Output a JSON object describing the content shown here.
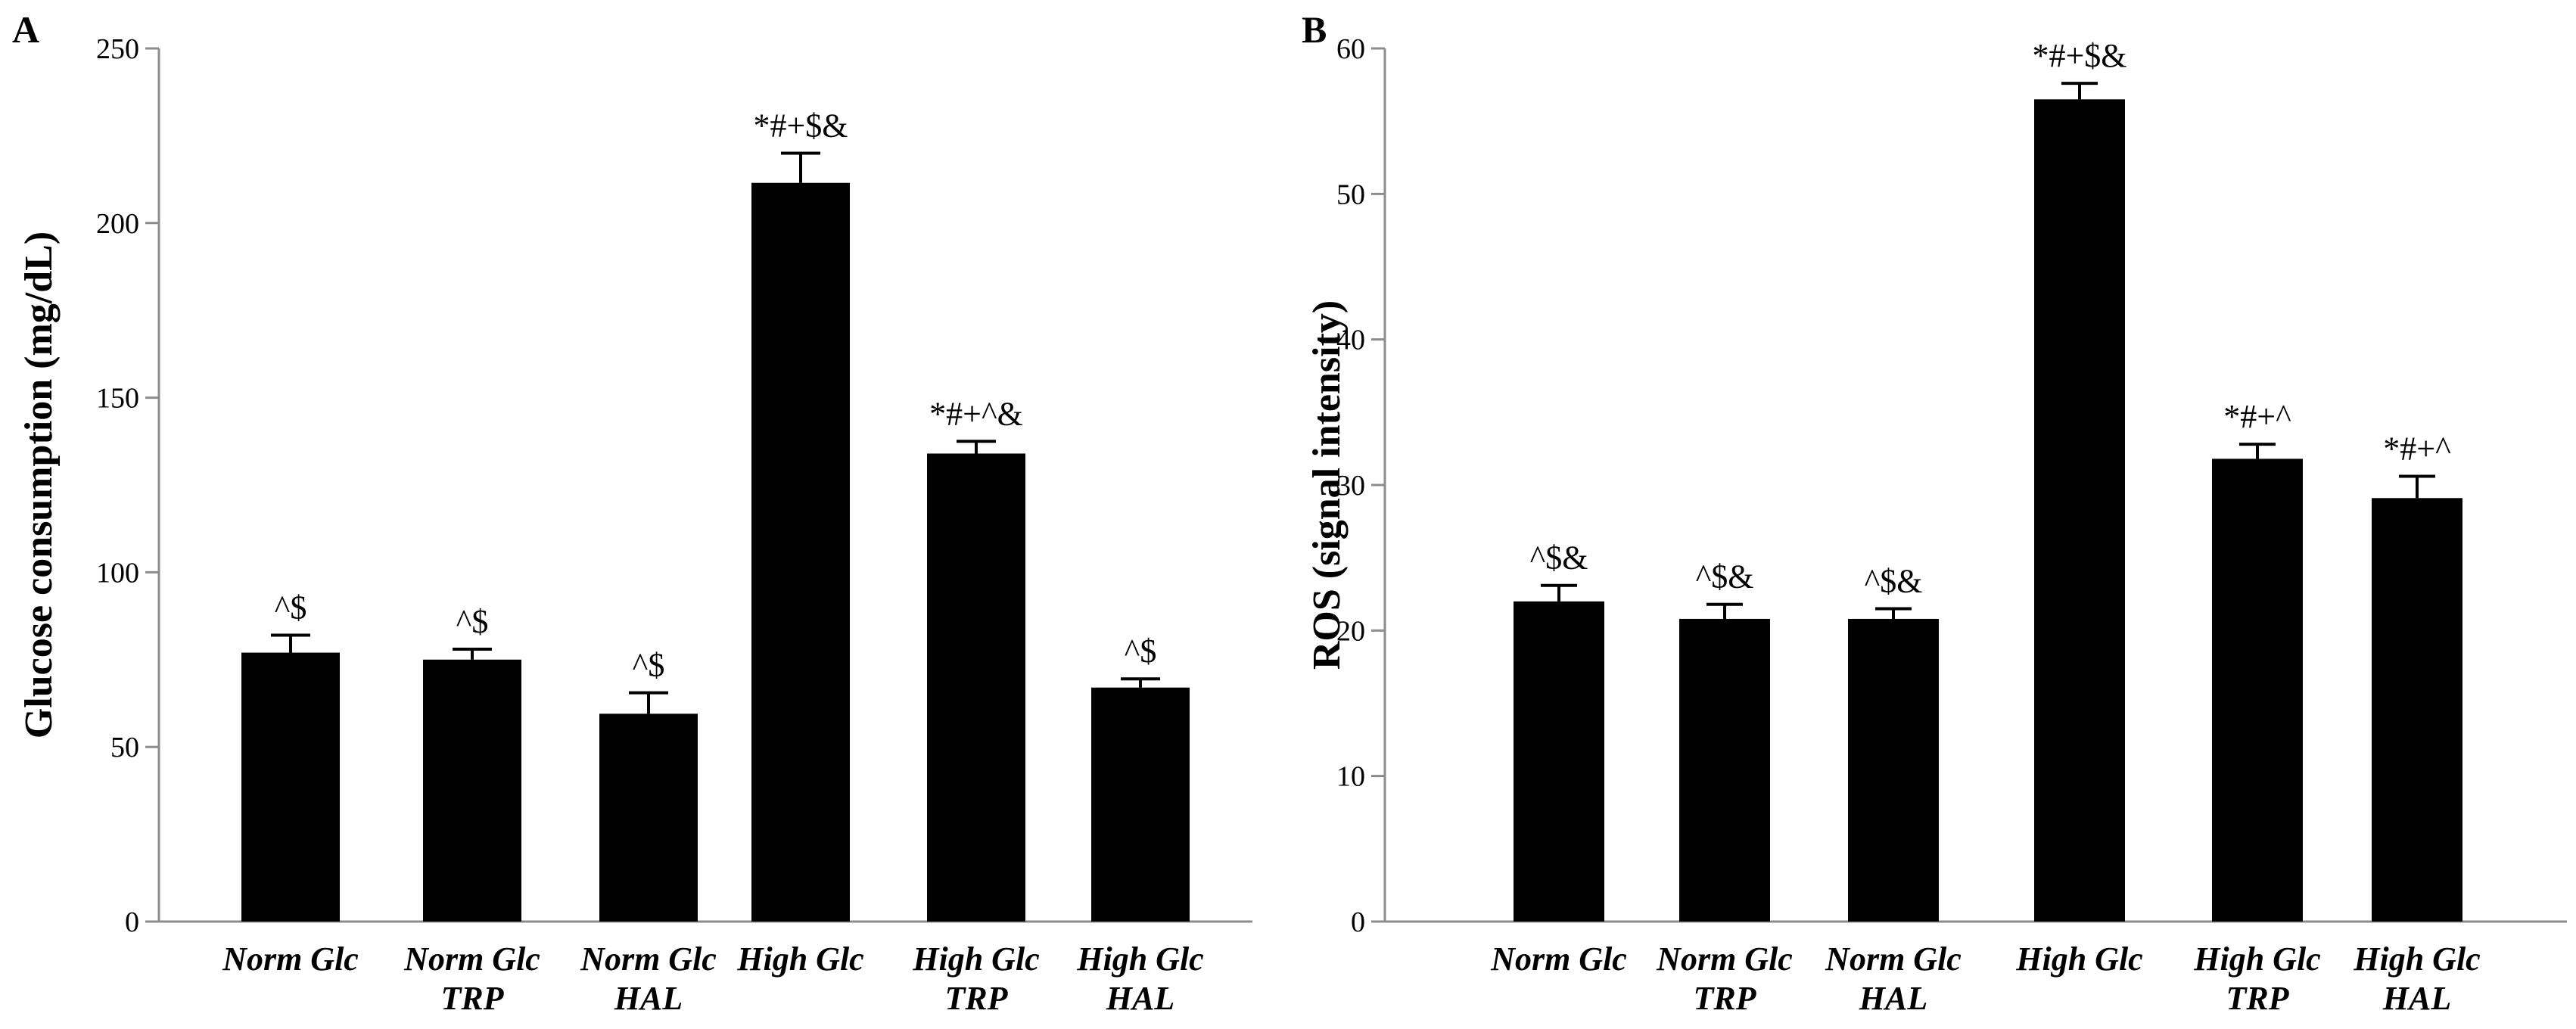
{
  "chart_data": [
    {
      "panel": "A",
      "type": "bar",
      "title": "",
      "xlabel": "",
      "ylabel": "Glucose consumption (mg/dL)",
      "ylim": [
        0,
        250
      ],
      "yticks": [
        0,
        50,
        100,
        150,
        200,
        250
      ],
      "categories": [
        [
          "Norm Glc"
        ],
        [
          "Norm Glc",
          "TRP"
        ],
        [
          "Norm Glc",
          "HAL"
        ],
        [
          "High Glc"
        ],
        [
          "High Glc",
          "TRP"
        ],
        [
          "High Glc",
          "HAL"
        ]
      ],
      "values": [
        77,
        75,
        59.5,
        211.5,
        134,
        67
      ],
      "errors": [
        5,
        3,
        6,
        8.5,
        3.5,
        2.5
      ],
      "significance": [
        "^$",
        "^$",
        "^$",
        "*#+$&",
        "*#+^&",
        "^$"
      ]
    },
    {
      "panel": "B",
      "type": "bar",
      "title": "",
      "xlabel": "",
      "ylabel": "ROS (signal intensity)",
      "ylim": [
        0,
        60
      ],
      "yticks": [
        0,
        10,
        20,
        30,
        40,
        50,
        60
      ],
      "categories": [
        [
          "Norm Glc"
        ],
        [
          "Norm Glc",
          "TRP"
        ],
        [
          "Norm Glc",
          "HAL"
        ],
        [
          "High Glc"
        ],
        [
          "High Glc",
          "TRP"
        ],
        [
          "High Glc",
          "HAL"
        ]
      ],
      "values": [
        22,
        20.8,
        20.8,
        56.5,
        31.8,
        29.1
      ],
      "errors": [
        1.1,
        1.0,
        0.7,
        1.1,
        1.0,
        1.5
      ],
      "significance": [
        "^$&",
        "^$&",
        "^$&",
        "*#+$&",
        "*#+^",
        "*#+^"
      ]
    }
  ]
}
